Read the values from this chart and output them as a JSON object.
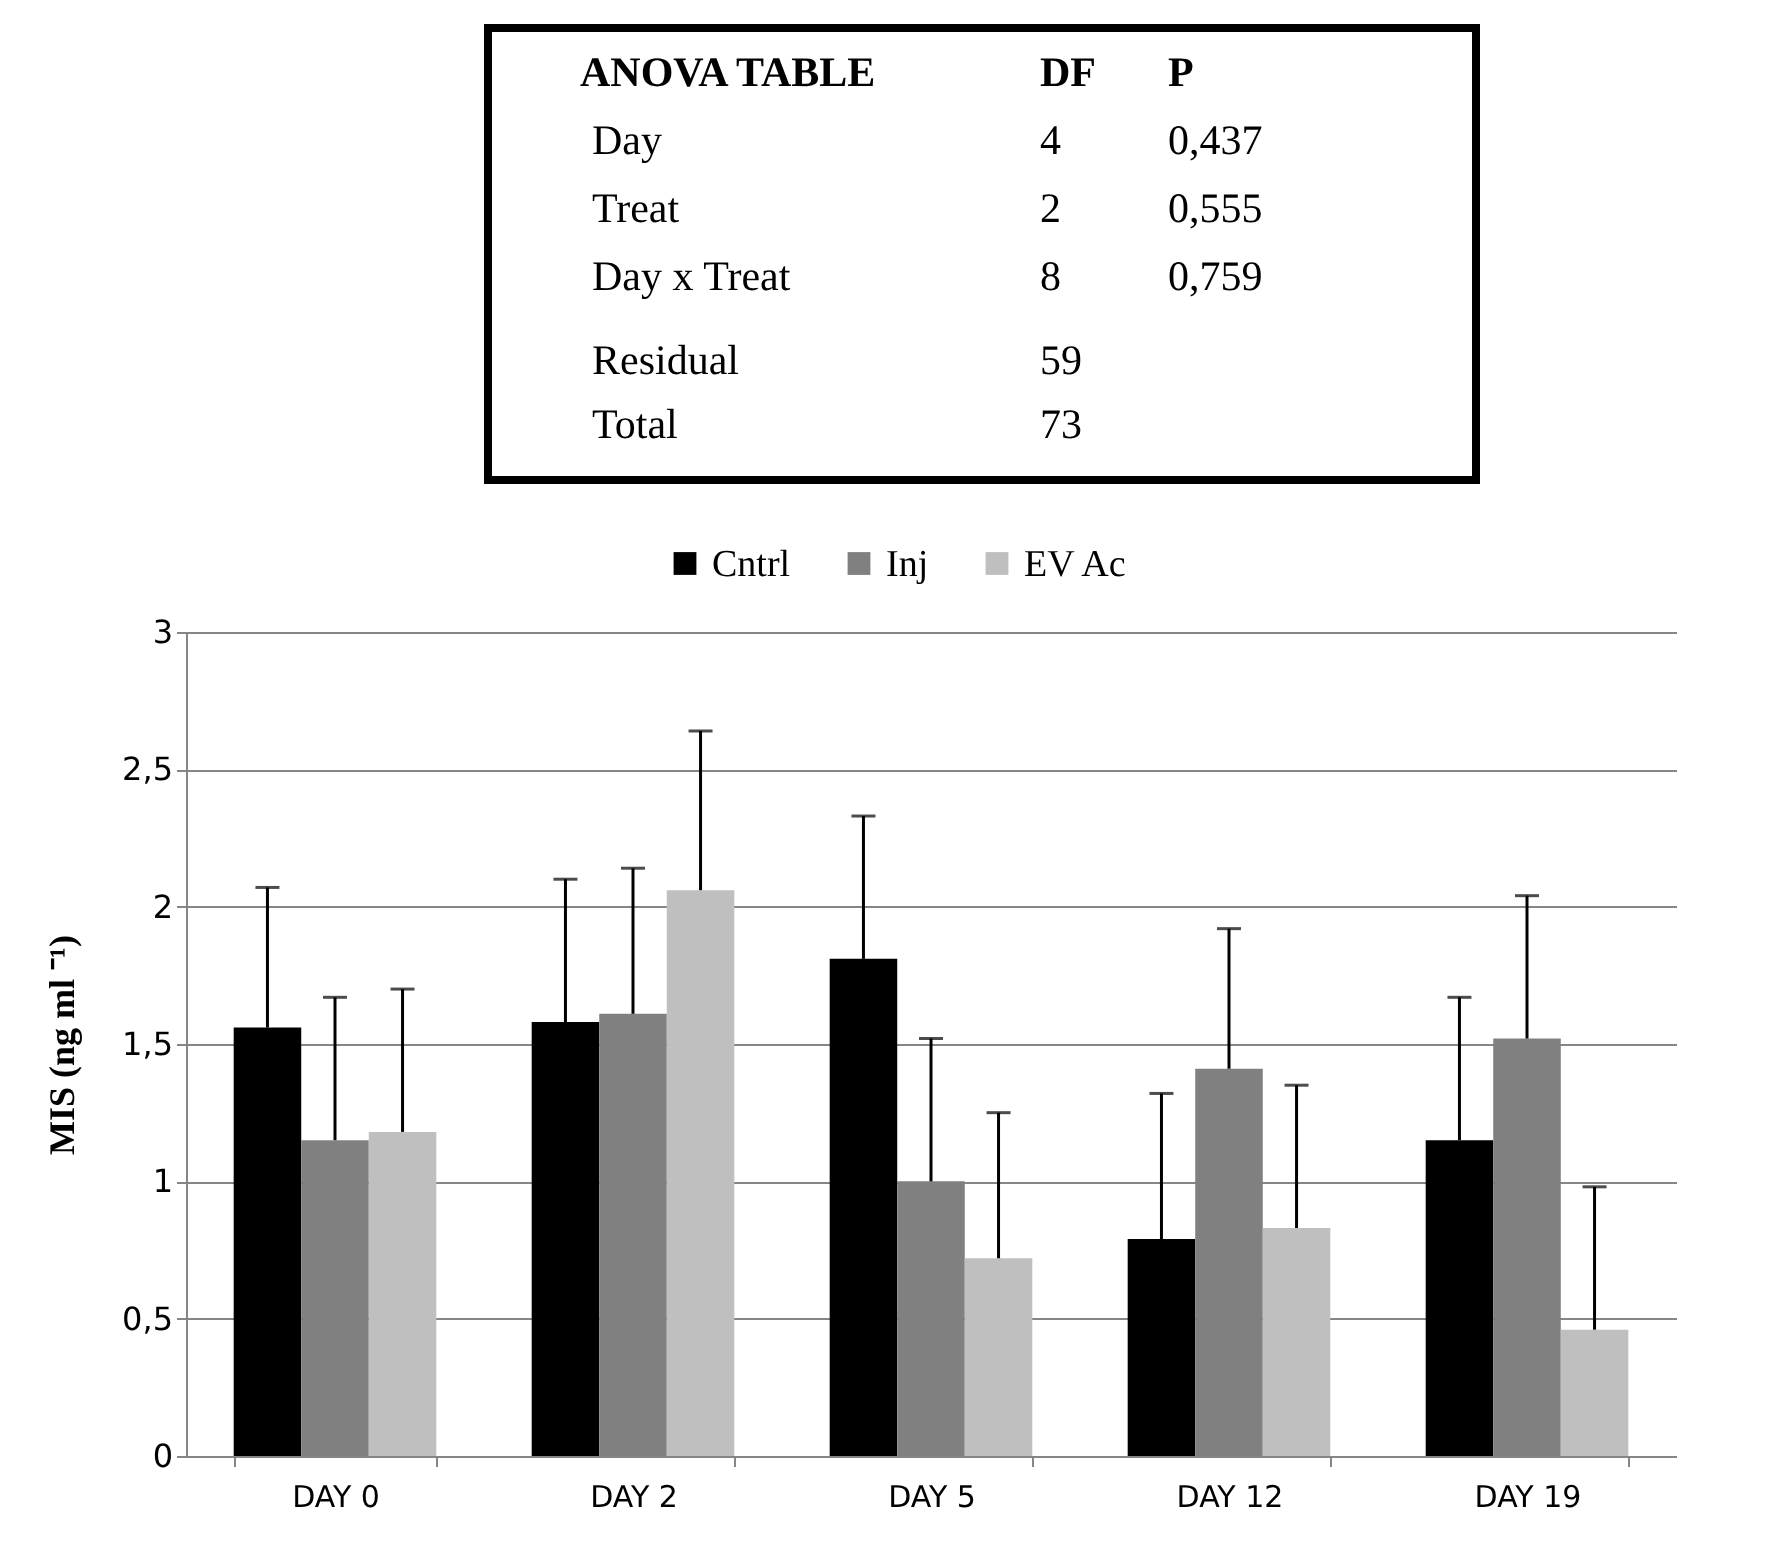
{
  "chart_data": {
    "type": "bar",
    "annotations": [
      "ANOVA TABLE",
      "DF",
      "P",
      "Day",
      "4",
      "0,437",
      "Treat",
      "2",
      "0,555",
      "Day x Treat",
      "8",
      "0,759",
      "Residual",
      "59",
      "Total",
      "73"
    ],
    "ylabel": "MIS  (ng ml ⁻¹)",
    "categories": [
      "DAY 0",
      "DAY 2",
      "DAY 5",
      "DAY 12",
      "DAY 19"
    ],
    "series": [
      {
        "name": "Cntrl",
        "color": "#000000",
        "values": [
          1.56,
          1.58,
          1.81,
          0.79,
          1.15
        ],
        "errors": [
          [
            1.56,
            2.07
          ],
          [
            1.58,
            2.1
          ],
          [
            1.81,
            2.33
          ],
          [
            0.79,
            1.32
          ],
          [
            1.15,
            1.67
          ]
        ]
      },
      {
        "name": "Inj",
        "color": "#808080",
        "values": [
          1.15,
          1.61,
          1.0,
          1.41,
          1.52
        ],
        "errors": [
          [
            1.15,
            1.67
          ],
          [
            1.61,
            2.14
          ],
          [
            1.0,
            1.52
          ],
          [
            1.41,
            1.92
          ],
          [
            1.52,
            2.04
          ]
        ]
      },
      {
        "name": "EV Ac",
        "color": "#bfbfbf",
        "values": [
          1.18,
          2.06,
          0.72,
          0.83,
          0.46
        ],
        "errors": [
          [
            1.18,
            1.7
          ],
          [
            2.06,
            2.64
          ],
          [
            0.72,
            1.25
          ],
          [
            0.83,
            1.35
          ],
          [
            0.46,
            0.98
          ]
        ]
      }
    ],
    "ylim": [
      0,
      3
    ],
    "yticks": [
      0,
      {
        "value": 0.5,
        "label": "0,5"
      },
      1,
      {
        "value": 1.5,
        "label": "1,5"
      },
      2,
      {
        "value": 2.5,
        "label": "2,5"
      },
      3
    ],
    "grid": "y",
    "legend": "top"
  }
}
